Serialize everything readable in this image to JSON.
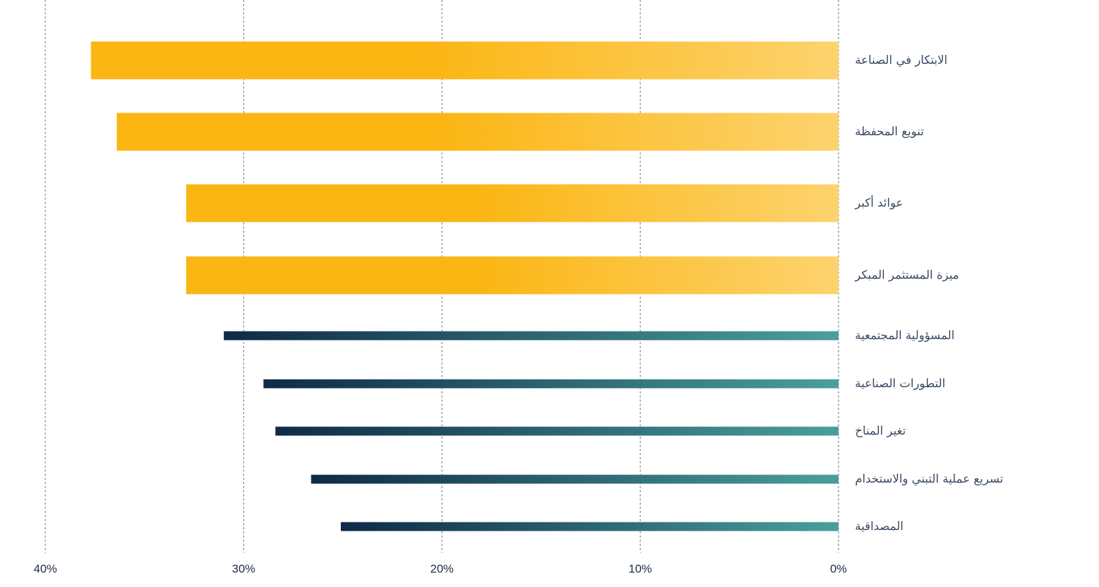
{
  "chart_data": {
    "type": "bar",
    "orientation": "horizontal",
    "x_direction": "right-to-left",
    "xlim": [
      0,
      40
    ],
    "ticks": [
      {
        "value": 40,
        "label": "40%"
      },
      {
        "value": 30,
        "label": "30%"
      },
      {
        "value": 20,
        "label": "20%"
      },
      {
        "value": 10,
        "label": "10%"
      },
      {
        "value": 0,
        "label": "0%"
      }
    ],
    "grid": true,
    "series": [
      {
        "style": "thick",
        "colors": [
          "#fbb614",
          "#fdd36e"
        ],
        "categories": [
          "الابتكار في الصناعة",
          "تنويع المحفظة",
          "عوائد أكبر",
          "ميزة المستثمر المبكر"
        ],
        "values": [
          37.7,
          36.4,
          32.9,
          32.9
        ]
      },
      {
        "style": "thin",
        "colors": [
          "#0e2a47",
          "#4a9f9b"
        ],
        "categories": [
          "المسؤولية المجتمعية",
          "التطورات الصناعية",
          "تغير المناخ",
          "تسريع عملية التبني والاستخدام",
          "المصداقية"
        ],
        "values": [
          31.0,
          29.0,
          28.4,
          26.6,
          25.1
        ]
      }
    ]
  }
}
